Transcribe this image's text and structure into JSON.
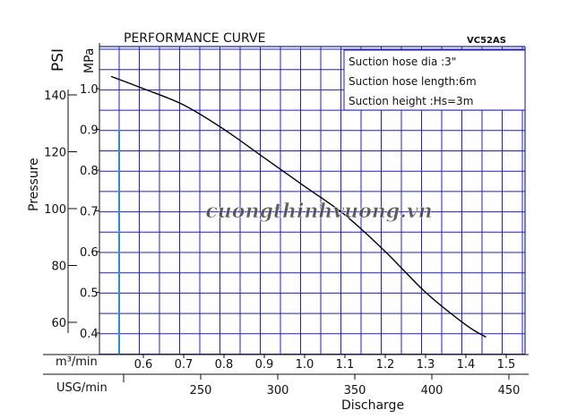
{
  "chart_data": {
    "type": "line",
    "title": "PERFORMANCE   CURVE",
    "model": "VC52AS",
    "info": [
      "Suction  hose  dia    :3\"",
      "Suction  hose  length:6m",
      "Suction  height        :Hs=3m"
    ],
    "watermark": "cuongthinhvuong.vn",
    "y_unit_mpa": "MPa",
    "y_unit_psi": "PSI",
    "ylabel": "Pressure",
    "xlabel": "Discharge",
    "x_unit_m3": "m³/min",
    "x_unit_usg": "USG/min",
    "mpa_ticks": [
      "1.0",
      "0.9",
      "0.8",
      "0.7",
      "0.6",
      "0.5",
      "0.4"
    ],
    "psi_ticks": [
      "140",
      "120",
      "100",
      "80",
      "60"
    ],
    "m3_ticks": [
      "0.6",
      "0.7",
      "0.8",
      "0.9",
      "1.0",
      "1.1",
      "1.2",
      "1.3",
      "1.4",
      "1.5"
    ],
    "usg_ticks": [
      "250",
      "300",
      "350",
      "400",
      "450"
    ],
    "xlim": [
      0.54,
      1.58
    ],
    "ylim_mpa": [
      0.33,
      1.07
    ],
    "series": [
      {
        "color": "#000000",
        "x": [
          0.52,
          0.6,
          0.7,
          0.8,
          0.9,
          1.0,
          1.1,
          1.2,
          1.3,
          1.4,
          1.45
        ],
        "y": [
          1.03,
          1.0,
          0.96,
          0.9,
          0.83,
          0.76,
          0.69,
          0.6,
          0.5,
          0.42,
          0.39
        ]
      }
    ],
    "grid": true,
    "colors": {
      "grid": "#1f1fd6",
      "accent_line": "#2a8fd6",
      "curve": "#000000",
      "watermark": "#555555"
    }
  }
}
